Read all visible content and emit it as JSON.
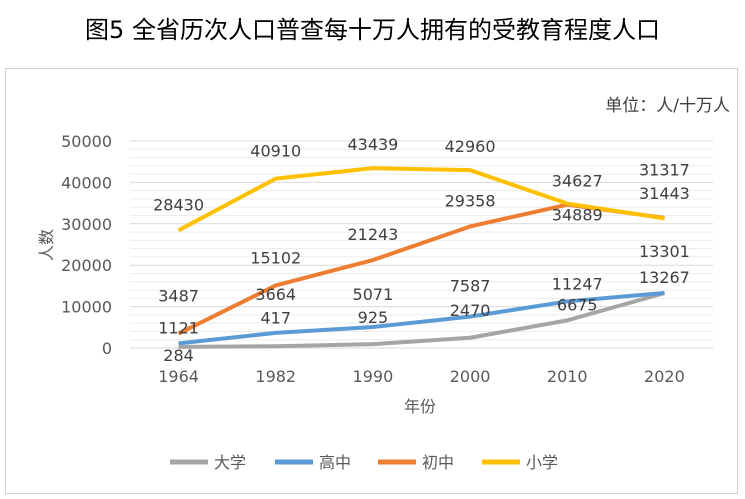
{
  "chart_data": {
    "type": "line",
    "title": "图5 全省历次人口普查每十万人拥有的受教育程度人口",
    "unit_note": "单位：人/十万人",
    "xlabel": "年份",
    "ylabel": "人数",
    "categories": [
      "1964",
      "1982",
      "1990",
      "2000",
      "2010",
      "2020"
    ],
    "ylim": [
      0,
      50000
    ],
    "yticks": [
      "0",
      "10000",
      "20000",
      "30000",
      "40000",
      "50000"
    ],
    "grid": true,
    "legend": "bottom",
    "series": [
      {
        "name": "大学",
        "color": "#a5a5a5",
        "values": [
          284,
          417,
          925,
          2470,
          6675,
          13267
        ]
      },
      {
        "name": "高中",
        "color": "#5b9bd5",
        "values": [
          1121,
          3664,
          5071,
          7587,
          11247,
          13301
        ]
      },
      {
        "name": "初中",
        "color": "#ed7d31",
        "values": [
          3487,
          15102,
          21243,
          29358,
          34627,
          31443
        ]
      },
      {
        "name": "小学",
        "color": "#ffc000",
        "values": [
          28430,
          40910,
          43439,
          42960,
          34889,
          31317
        ]
      }
    ]
  }
}
